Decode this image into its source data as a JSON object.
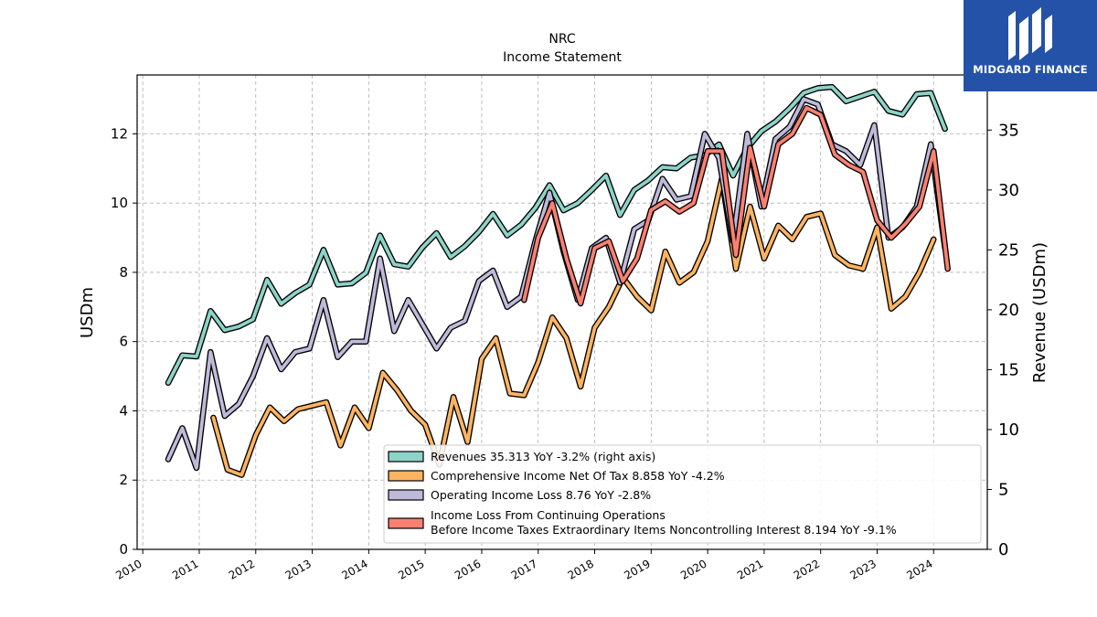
{
  "brand": {
    "name": "MIDGARD FINANCE",
    "color": "#2452a8"
  },
  "chart_data": {
    "type": "line",
    "title": "NRC",
    "subtitle": "Income Statement",
    "ylabel": "USDm",
    "y2label": "Revenue (USDm)",
    "ylim": [
      0,
      13.7
    ],
    "y2lim": [
      0,
      39.6
    ],
    "yticks": [
      0,
      2,
      4,
      6,
      8,
      10,
      12
    ],
    "y2ticks": [
      0,
      5,
      10,
      15,
      20,
      25,
      30,
      35
    ],
    "xlim": [
      2009.9,
      2024.95
    ],
    "xticks": [
      2010,
      2011,
      2012,
      2013,
      2014,
      2015,
      2016,
      2017,
      2018,
      2019,
      2020,
      2021,
      2022,
      2023,
      2024
    ],
    "grid": true,
    "legend_position": "bottom-right",
    "series": [
      {
        "name": "Revenues",
        "legend": "Revenues  35.313 YoY -3.2% (right axis)",
        "axis": "right",
        "color": "#8dd3c7",
        "points": [
          [
            2010.45,
            13.9
          ],
          [
            2010.7,
            16.2
          ],
          [
            2010.95,
            16.1
          ],
          [
            2011.2,
            19.9
          ],
          [
            2011.45,
            18.3
          ],
          [
            2011.7,
            18.6
          ],
          [
            2011.95,
            19.2
          ],
          [
            2012.2,
            22.5
          ],
          [
            2012.45,
            20.5
          ],
          [
            2012.7,
            21.4
          ],
          [
            2012.95,
            22.1
          ],
          [
            2013.2,
            25.0
          ],
          [
            2013.45,
            22.1
          ],
          [
            2013.7,
            22.2
          ],
          [
            2013.95,
            23.1
          ],
          [
            2014.2,
            26.2
          ],
          [
            2014.45,
            23.8
          ],
          [
            2014.7,
            23.6
          ],
          [
            2014.95,
            25.2
          ],
          [
            2015.2,
            26.4
          ],
          [
            2015.45,
            24.4
          ],
          [
            2015.7,
            25.3
          ],
          [
            2015.95,
            26.5
          ],
          [
            2016.2,
            28.0
          ],
          [
            2016.45,
            26.2
          ],
          [
            2016.7,
            27.1
          ],
          [
            2016.95,
            28.5
          ],
          [
            2017.2,
            30.4
          ],
          [
            2017.45,
            28.3
          ],
          [
            2017.7,
            28.9
          ],
          [
            2017.95,
            30.0
          ],
          [
            2018.2,
            31.2
          ],
          [
            2018.45,
            27.9
          ],
          [
            2018.7,
            30.0
          ],
          [
            2018.95,
            30.8
          ],
          [
            2019.2,
            31.9
          ],
          [
            2019.45,
            31.8
          ],
          [
            2019.7,
            32.7
          ],
          [
            2019.95,
            32.9
          ],
          [
            2020.2,
            33.8
          ],
          [
            2020.45,
            31.2
          ],
          [
            2020.7,
            33.5
          ],
          [
            2020.95,
            34.9
          ],
          [
            2021.2,
            35.7
          ],
          [
            2021.45,
            36.8
          ],
          [
            2021.7,
            38.1
          ],
          [
            2021.95,
            38.5
          ],
          [
            2022.2,
            38.6
          ],
          [
            2022.45,
            37.4
          ],
          [
            2022.7,
            37.8
          ],
          [
            2022.95,
            38.2
          ],
          [
            2023.2,
            36.6
          ],
          [
            2023.45,
            36.3
          ],
          [
            2023.7,
            38.0
          ],
          [
            2023.95,
            38.1
          ],
          [
            2024.2,
            35.1
          ]
        ]
      },
      {
        "name": "Comprehensive Income Net Of Tax",
        "legend": "Comprehensive Income Net Of Tax  8.858 YoY -4.2%",
        "axis": "left",
        "color": "#fdb462",
        "points": [
          [
            2011.25,
            3.8
          ],
          [
            2011.5,
            2.3
          ],
          [
            2011.75,
            2.15
          ],
          [
            2012.0,
            3.3
          ],
          [
            2012.25,
            4.1
          ],
          [
            2012.5,
            3.7
          ],
          [
            2012.75,
            4.05
          ],
          [
            2013.0,
            4.15
          ],
          [
            2013.25,
            4.25
          ],
          [
            2013.5,
            3.0
          ],
          [
            2013.75,
            4.1
          ],
          [
            2014.0,
            3.5
          ],
          [
            2014.25,
            5.1
          ],
          [
            2014.5,
            4.6
          ],
          [
            2014.75,
            4.0
          ],
          [
            2015.0,
            3.6
          ],
          [
            2015.25,
            2.45
          ],
          [
            2015.5,
            4.4
          ],
          [
            2015.75,
            3.1
          ],
          [
            2016.0,
            5.5
          ],
          [
            2016.25,
            6.1
          ],
          [
            2016.5,
            4.5
          ],
          [
            2016.75,
            4.45
          ],
          [
            2017.0,
            5.4
          ],
          [
            2017.25,
            6.7
          ],
          [
            2017.5,
            6.1
          ],
          [
            2017.75,
            4.7
          ],
          [
            2018.0,
            6.4
          ],
          [
            2018.25,
            7.0
          ],
          [
            2018.5,
            7.85
          ],
          [
            2018.75,
            7.3
          ],
          [
            2019.0,
            6.9
          ],
          [
            2019.25,
            8.6
          ],
          [
            2019.5,
            7.7
          ],
          [
            2019.75,
            8.0
          ],
          [
            2020.0,
            8.9
          ],
          [
            2020.25,
            10.7
          ],
          [
            2020.5,
            8.1
          ],
          [
            2020.75,
            9.9
          ],
          [
            2021.0,
            8.4
          ],
          [
            2021.25,
            9.35
          ],
          [
            2021.5,
            8.95
          ],
          [
            2021.75,
            9.6
          ],
          [
            2022.0,
            9.7
          ],
          [
            2022.25,
            8.5
          ],
          [
            2022.5,
            8.2
          ],
          [
            2022.75,
            8.1
          ],
          [
            2023.0,
            9.3
          ],
          [
            2023.25,
            6.95
          ],
          [
            2023.5,
            7.3
          ],
          [
            2023.75,
            8.0
          ],
          [
            2024.0,
            8.95
          ]
        ]
      },
      {
        "name": "Operating Income Loss",
        "legend": "Operating Income Loss  8.76 YoY -2.8%",
        "axis": "left",
        "color": "#bebada",
        "points": [
          [
            2010.45,
            2.6
          ],
          [
            2010.7,
            3.5
          ],
          [
            2010.95,
            2.35
          ],
          [
            2011.2,
            5.7
          ],
          [
            2011.45,
            3.85
          ],
          [
            2011.7,
            4.2
          ],
          [
            2011.95,
            5.0
          ],
          [
            2012.2,
            6.1
          ],
          [
            2012.45,
            5.2
          ],
          [
            2012.7,
            5.7
          ],
          [
            2012.95,
            5.8
          ],
          [
            2013.2,
            7.2
          ],
          [
            2013.45,
            5.55
          ],
          [
            2013.7,
            6.0
          ],
          [
            2013.95,
            6.0
          ],
          [
            2014.2,
            8.4
          ],
          [
            2014.45,
            6.3
          ],
          [
            2014.7,
            7.2
          ],
          [
            2014.95,
            6.5
          ],
          [
            2015.2,
            5.8
          ],
          [
            2015.45,
            6.4
          ],
          [
            2015.7,
            6.6
          ],
          [
            2015.95,
            7.75
          ],
          [
            2016.2,
            8.05
          ],
          [
            2016.45,
            7.0
          ],
          [
            2016.7,
            7.3
          ],
          [
            2016.95,
            8.9
          ],
          [
            2017.2,
            10.3
          ],
          [
            2017.45,
            8.6
          ],
          [
            2017.7,
            7.2
          ],
          [
            2017.95,
            8.7
          ],
          [
            2018.2,
            9.0
          ],
          [
            2018.45,
            7.7
          ],
          [
            2018.7,
            9.25
          ],
          [
            2018.95,
            9.5
          ],
          [
            2019.2,
            10.7
          ],
          [
            2019.45,
            10.1
          ],
          [
            2019.7,
            10.2
          ],
          [
            2019.95,
            12.0
          ],
          [
            2020.2,
            11.3
          ],
          [
            2020.45,
            8.9
          ],
          [
            2020.7,
            12.0
          ],
          [
            2020.95,
            9.9
          ],
          [
            2021.2,
            11.85
          ],
          [
            2021.45,
            12.2
          ],
          [
            2021.7,
            13.0
          ],
          [
            2021.95,
            12.85
          ],
          [
            2022.2,
            11.7
          ],
          [
            2022.45,
            11.5
          ],
          [
            2022.7,
            11.1
          ],
          [
            2022.95,
            12.25
          ],
          [
            2023.2,
            9.0
          ],
          [
            2023.45,
            9.3
          ],
          [
            2023.7,
            9.9
          ],
          [
            2023.95,
            11.7
          ],
          [
            2024.2,
            8.7
          ]
        ]
      },
      {
        "name": "Income Loss From Continuing Operations Before Income Taxes Extraordinary Items Noncontrolling Interest",
        "legend_line1": "Income Loss From Continuing Operations",
        "legend_line2": "Before Income Taxes Extraordinary Items Noncontrolling Interest  8.194 YoY -9.1%",
        "axis": "left",
        "color": "#fb8072",
        "points": [
          [
            2016.75,
            7.2
          ],
          [
            2017.0,
            9.0
          ],
          [
            2017.25,
            10.0
          ],
          [
            2017.5,
            8.4
          ],
          [
            2017.75,
            7.1
          ],
          [
            2018.0,
            8.7
          ],
          [
            2018.25,
            8.9
          ],
          [
            2018.5,
            7.75
          ],
          [
            2018.75,
            8.4
          ],
          [
            2019.0,
            9.8
          ],
          [
            2019.25,
            10.05
          ],
          [
            2019.5,
            9.75
          ],
          [
            2019.75,
            10.0
          ],
          [
            2020.0,
            11.5
          ],
          [
            2020.25,
            11.5
          ],
          [
            2020.5,
            8.5
          ],
          [
            2020.75,
            11.6
          ],
          [
            2021.0,
            9.9
          ],
          [
            2021.25,
            11.7
          ],
          [
            2021.5,
            12.0
          ],
          [
            2021.75,
            12.75
          ],
          [
            2022.0,
            12.55
          ],
          [
            2022.25,
            11.4
          ],
          [
            2022.5,
            11.1
          ],
          [
            2022.75,
            10.9
          ],
          [
            2023.0,
            9.5
          ],
          [
            2023.25,
            9.0
          ],
          [
            2023.5,
            9.4
          ],
          [
            2023.75,
            9.9
          ],
          [
            2024.0,
            11.5
          ],
          [
            2024.25,
            8.1
          ]
        ]
      }
    ]
  }
}
